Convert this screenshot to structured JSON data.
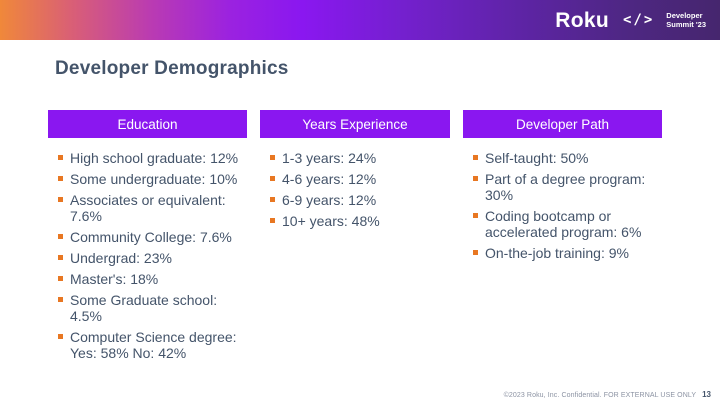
{
  "topbar": {
    "brand": "Roku",
    "code_icon": "</>",
    "event": {
      "line1": "Developer",
      "line2": "Summit '23"
    }
  },
  "slide": {
    "title": "Developer Demographics"
  },
  "columns": [
    {
      "header": "Education",
      "items": [
        "High school graduate: 12%",
        "Some undergraduate: 10%",
        "Associates or equivalent:\n7.6%",
        "Community College: 7.6%",
        "Undergrad: 23%",
        "Master's: 18%",
        "Some Graduate school:\n4.5%",
        "Computer Science degree:\nYes: 58% No: 42%"
      ]
    },
    {
      "header": "Years Experience",
      "items": [
        "1-3 years: 24%",
        "4-6 years: 12%",
        "6-9 years: 12%",
        "10+ years: 48%"
      ]
    },
    {
      "header": "Developer Path",
      "items": [
        "Self-taught: 50%",
        "Part of a degree program:\n30%",
        "Coding bootcamp or\naccelerated program: 6%",
        "On-the-job training: 9%"
      ]
    }
  ],
  "footer": {
    "confidential": "©2023 Roku, Inc. Confidential. FOR EXTERNAL USE ONLY",
    "page": "13"
  },
  "colors": {
    "accent": "#8A17F0",
    "bullet": "#E87722",
    "text": "#44546A",
    "footerGray": "#8C93A3",
    "gradientStart": "#F0883A",
    "gradientMid": "#8A17F0",
    "gradientEnd": "#46266E"
  }
}
